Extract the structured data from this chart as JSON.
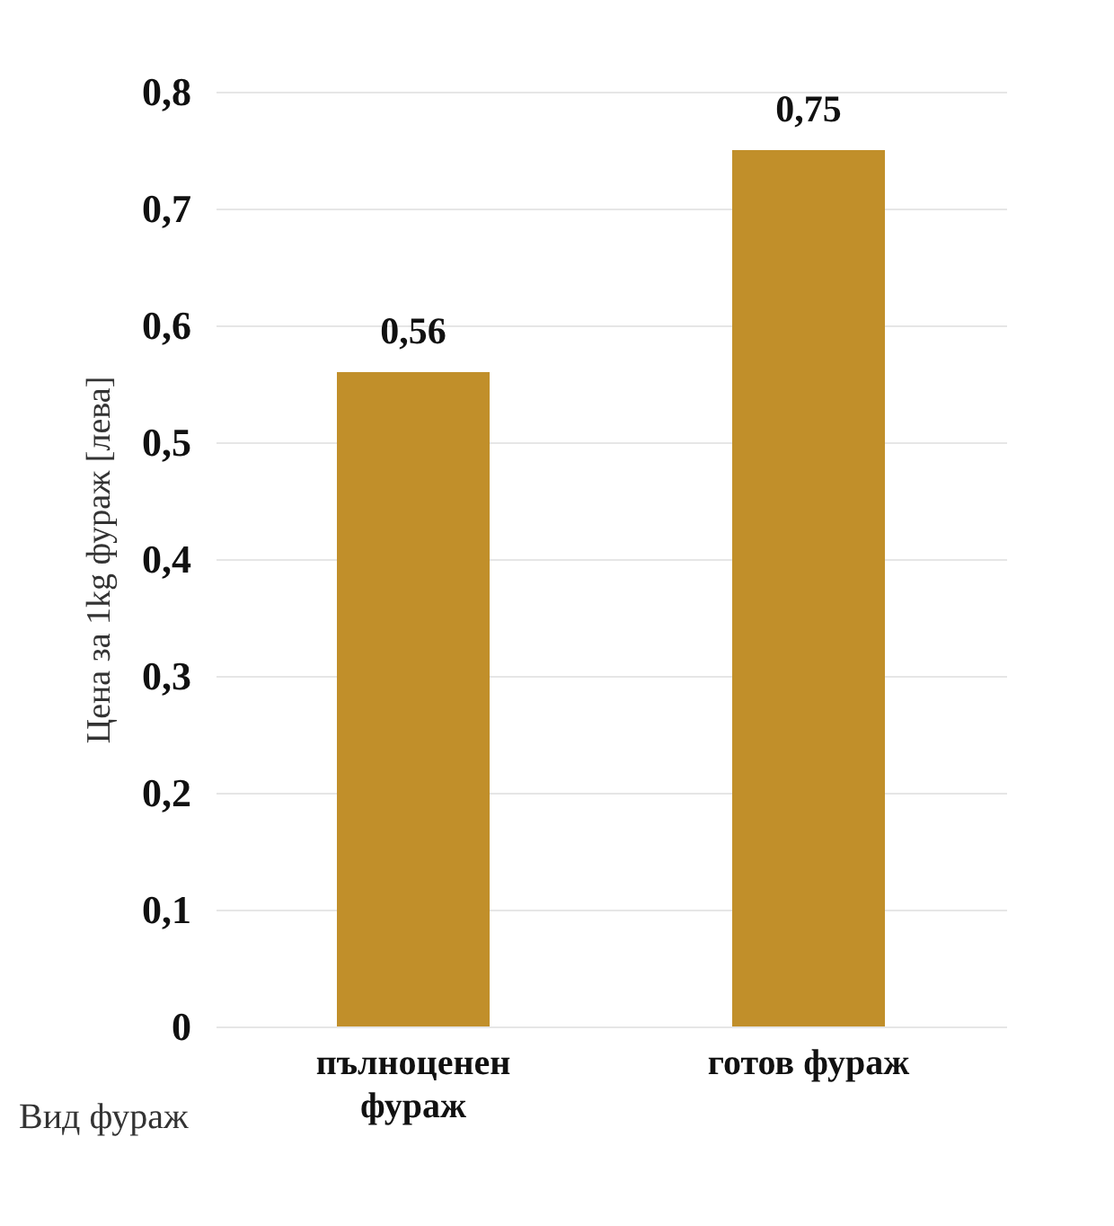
{
  "chart_data": {
    "type": "bar",
    "categories": [
      "пълноценен фураж",
      "готов фураж"
    ],
    "values": [
      0.56,
      0.75
    ],
    "value_labels": [
      "0,56",
      "0,75"
    ],
    "color": "#c18f2a",
    "ylabel": "Цена за 1kg фураж [лева]",
    "xlabel": "Вид фураж",
    "ylim": [
      0,
      0.8
    ],
    "yticks": [
      0,
      {
        "value": 0.1,
        "label": "0,1"
      },
      {
        "value": 0.2,
        "label": "0,2"
      },
      {
        "value": 0.3,
        "label": "0,3"
      },
      {
        "value": 0.4,
        "label": "0,4"
      },
      {
        "value": 0.5,
        "label": "0,5"
      },
      {
        "value": 0.6,
        "label": "0,6"
      },
      {
        "value": 0.7,
        "label": "0,7"
      },
      {
        "value": 0.8,
        "label": "0,8"
      }
    ],
    "grid": "y"
  }
}
